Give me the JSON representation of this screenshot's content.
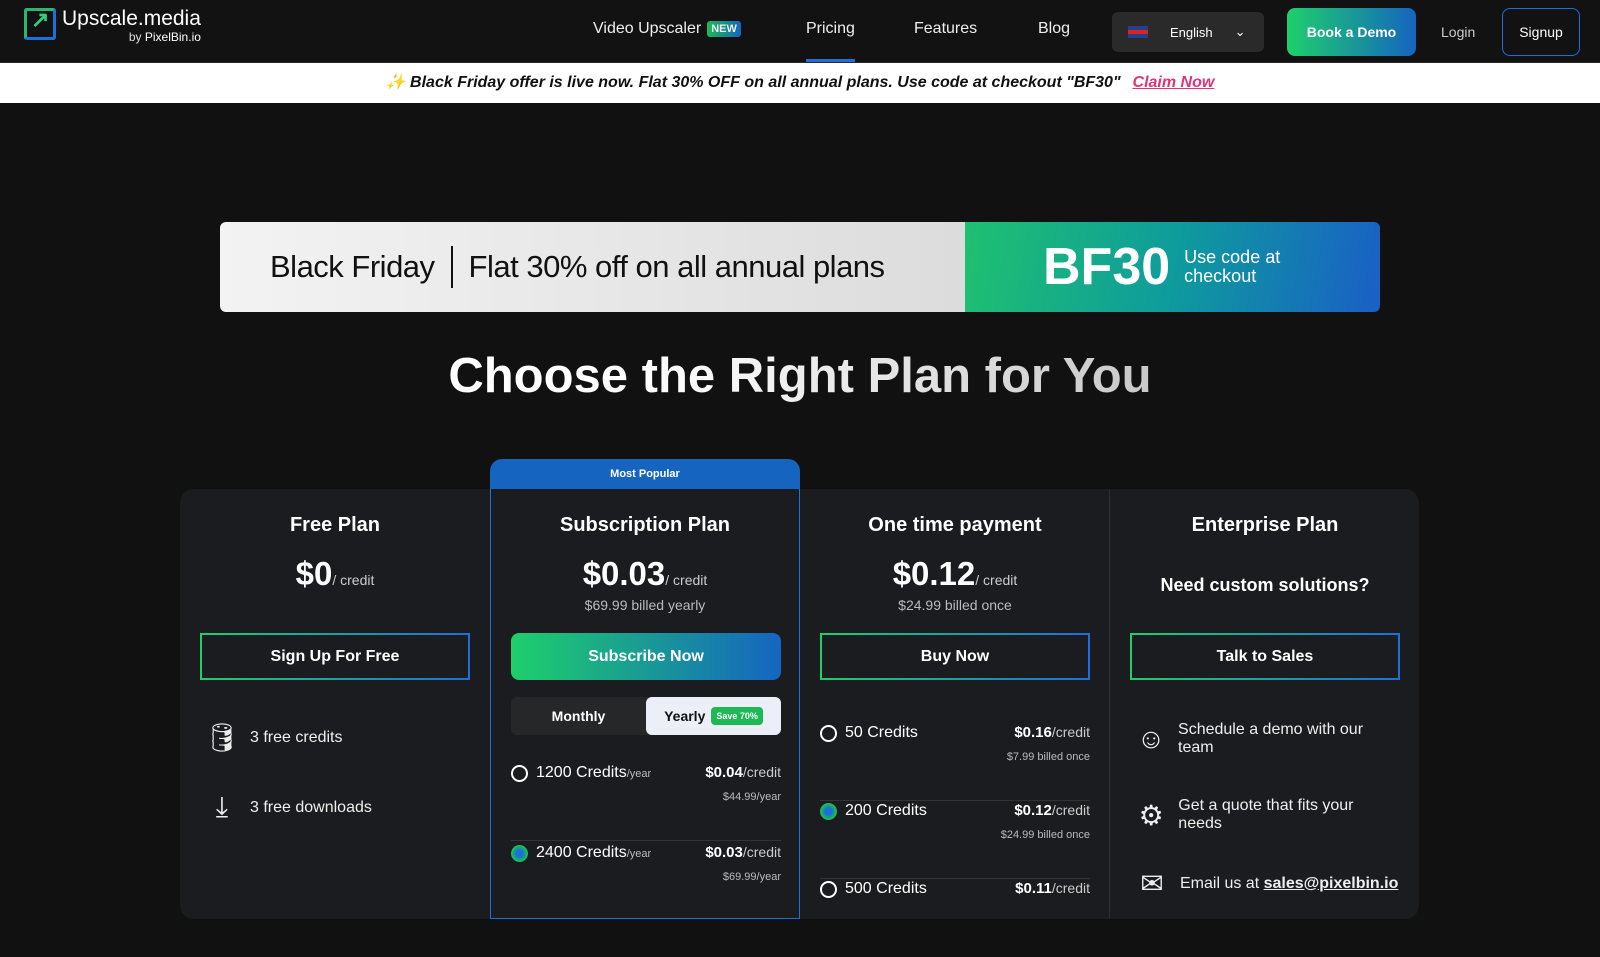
{
  "nav": {
    "logo_title": "Upscale.media",
    "logo_by": "by",
    "logo_brand": "PixelBin.io",
    "video_upscaler": "Video Upscaler",
    "new_badge": "NEW",
    "pricing": "Pricing",
    "features": "Features",
    "blog": "Blog",
    "language": "English",
    "book_demo": "Book a Demo",
    "login": "Login",
    "signup": "Signup"
  },
  "offer": {
    "icon": "✨",
    "text": "Black Friday offer is live now. Flat 30% OFF on all annual plans. Use code at checkout \"BF30\"",
    "claim": "Claim Now"
  },
  "banner": {
    "left": "Black Friday",
    "right": "Flat 30% off on all annual plans",
    "code": "BF30",
    "code_note_1": "Use code at",
    "code_note_2": "checkout"
  },
  "heading": "Choose the Right Plan for You",
  "plans": {
    "free": {
      "title": "Free Plan",
      "price": "$0",
      "unit": "/ credit",
      "button": "Sign Up For Free",
      "features": [
        "3 free credits",
        "3 free downloads"
      ]
    },
    "sub": {
      "badge": "Most Popular",
      "title": "Subscription Plan",
      "price": "$0.03",
      "unit": "/ credit",
      "billed": "$69.99 billed yearly",
      "button": "Subscribe Now",
      "toggle_monthly": "Monthly",
      "toggle_yearly": "Yearly",
      "save": "Save 70%",
      "options": [
        {
          "credits": "1200 Credits",
          "per": "/year",
          "price": "$0.04",
          "unit": "/credit",
          "sub": "$44.99/year",
          "selected": false
        },
        {
          "credits": "2400 Credits",
          "per": "/year",
          "price": "$0.03",
          "unit": "/credit",
          "sub": "$69.99/year",
          "selected": true
        }
      ]
    },
    "once": {
      "title": "One time payment",
      "price": "$0.12",
      "unit": "/ credit",
      "billed": "$24.99 billed once",
      "button": "Buy Now",
      "options": [
        {
          "credits": "50 Credits",
          "price": "$0.16",
          "unit": "/credit",
          "sub": "$7.99 billed once",
          "selected": false
        },
        {
          "credits": "200 Credits",
          "price": "$0.12",
          "unit": "/credit",
          "sub": "$24.99 billed once",
          "selected": true
        },
        {
          "credits": "500 Credits",
          "price": "$0.11",
          "unit": "/credit",
          "selected": false
        }
      ]
    },
    "ent": {
      "title": "Enterprise Plan",
      "subtitle": "Need custom solutions?",
      "button": "Talk to Sales",
      "features": [
        "Schedule a demo with our team",
        "Get a quote that fits your needs"
      ],
      "email_prefix": "Email us at",
      "email": "sales@pixelbin.io"
    }
  }
}
